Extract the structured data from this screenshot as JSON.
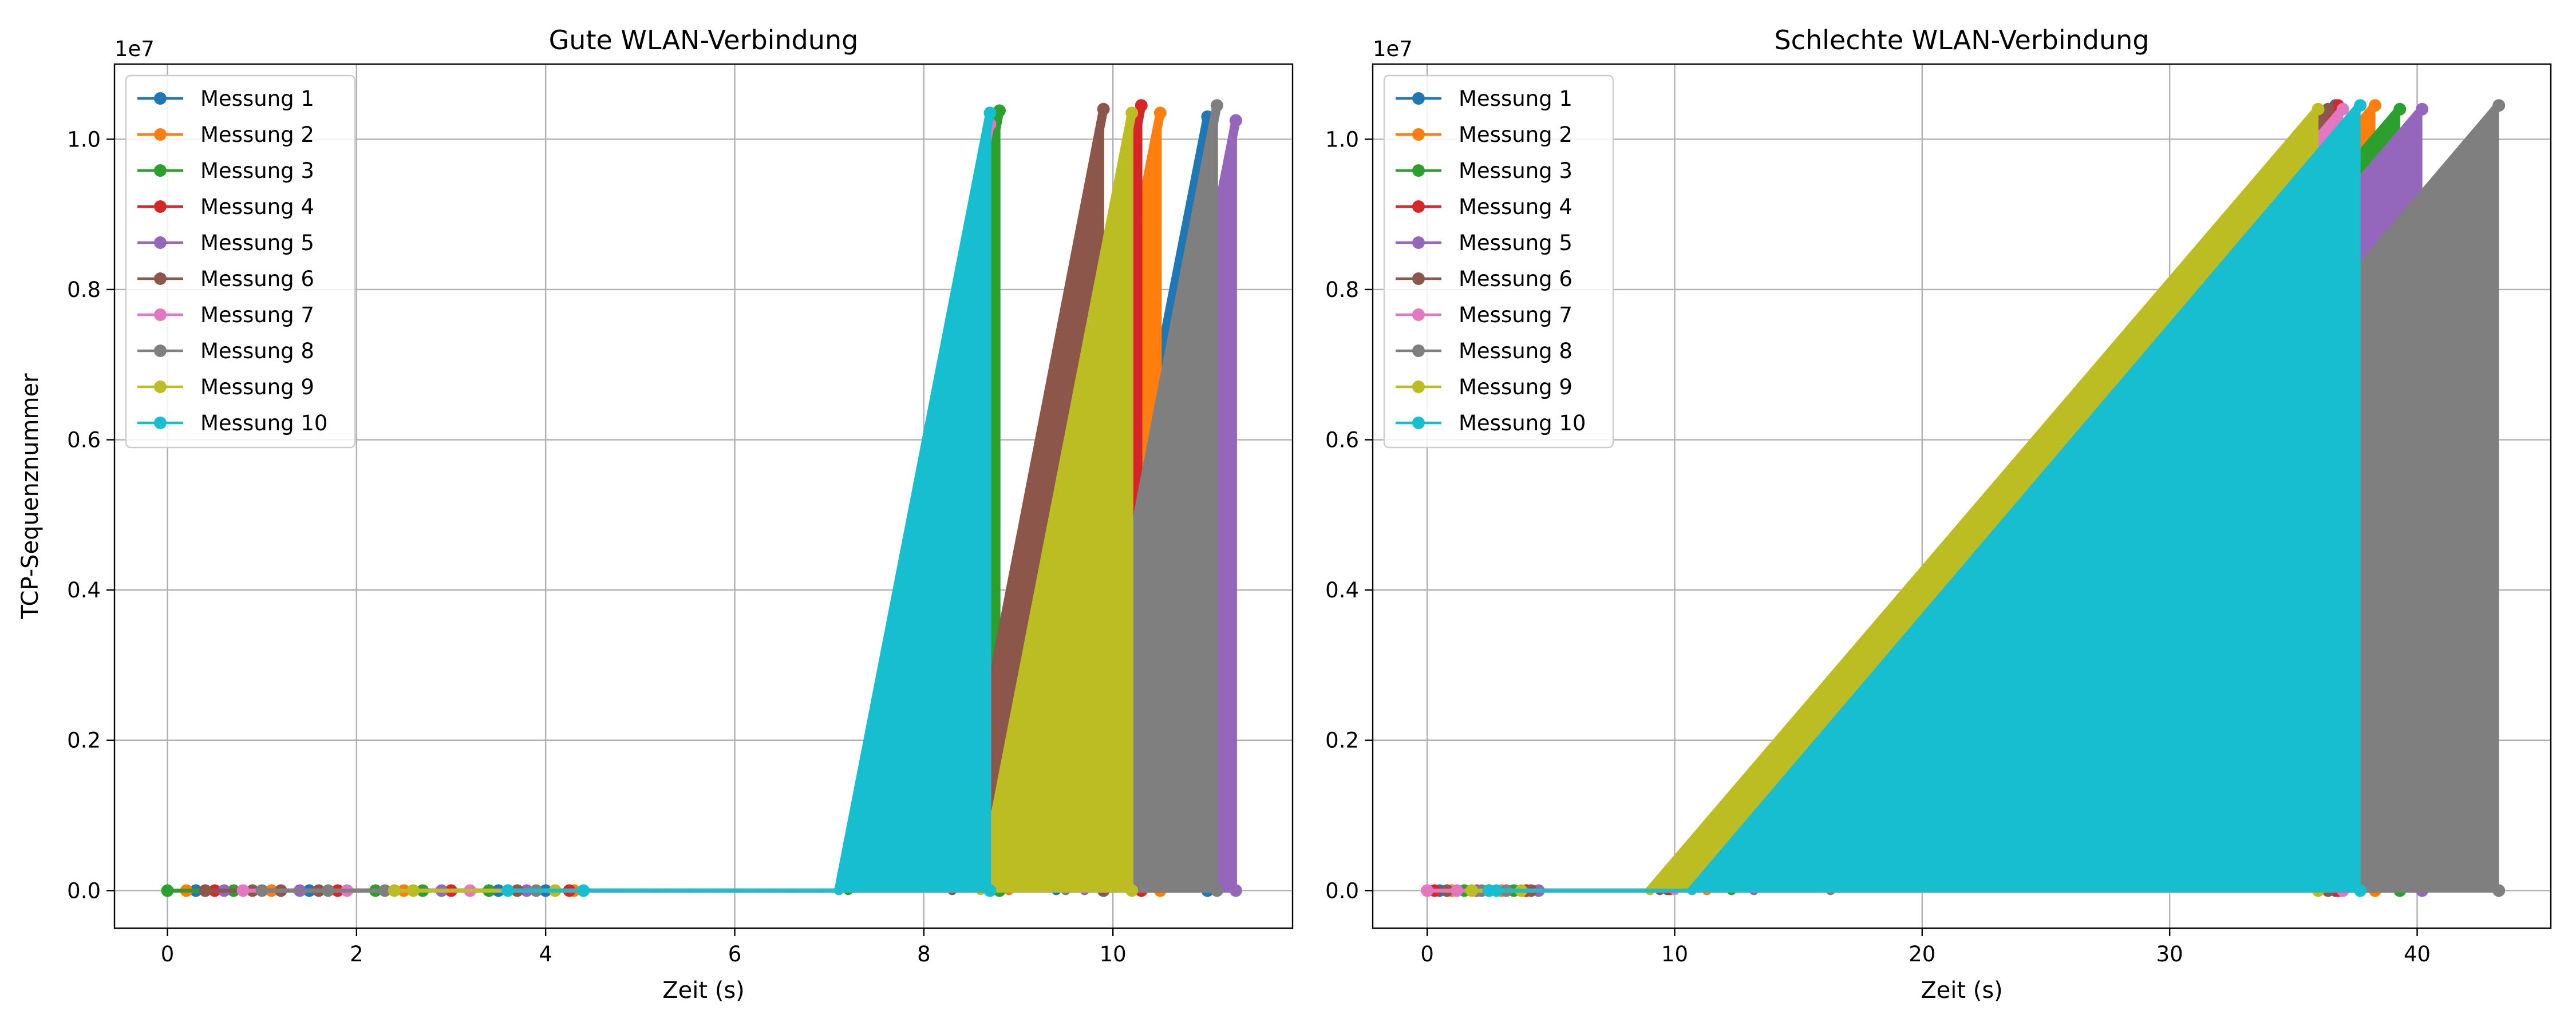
{
  "chart_data": [
    {
      "type": "line",
      "title": "Gute WLAN-Verbindung",
      "xlabel": "Zeit (s)",
      "ylabel": "TCP-Sequenznummer",
      "y_offset_label": "1e7",
      "xlim": [
        -0.56,
        11.9
      ],
      "ylim": [
        -500000,
        11000000
      ],
      "xticks": [
        0,
        2,
        4,
        6,
        8,
        10
      ],
      "xtick_labels": [
        "0",
        "2",
        "4",
        "6",
        "8",
        "10"
      ],
      "yticks": [
        0,
        2000000,
        4000000,
        6000000,
        8000000,
        10000000
      ],
      "ytick_labels": [
        "0.0",
        "0.2",
        "0.4",
        "0.6",
        "0.8",
        "1.0"
      ],
      "grid": true,
      "legend_position": "top-left",
      "series": [
        {
          "name": "Messung 1",
          "color": "#1f77b4",
          "idle_x": [
            0.3,
            1.5,
            3.5,
            4.0
          ],
          "ramp_start": 5.0,
          "ramp_end": 11.0,
          "y_max": 10300000
        },
        {
          "name": "Messung 2",
          "color": "#ff7f0e",
          "idle_x": [
            0.2,
            0.4,
            1.1,
            2.5,
            4.3
          ],
          "ramp_start": 5.0,
          "ramp_end": 10.5,
          "y_max": 10350000
        },
        {
          "name": "Messung 3",
          "color": "#2ca02c",
          "idle_x": [
            0.0,
            0.7,
            2.2,
            2.7,
            3.4
          ],
          "ramp_start": 4.7,
          "ramp_end": 8.8,
          "y_max": 10380000
        },
        {
          "name": "Messung 4",
          "color": "#d62728",
          "idle_x": [
            0.5,
            1.8,
            3.0,
            4.25
          ],
          "ramp_start": 4.9,
          "ramp_end": 10.3,
          "y_max": 10450000
        },
        {
          "name": "Messung 5",
          "color": "#9467bd",
          "idle_x": [
            0.6,
            1.4,
            2.9,
            3.8
          ],
          "ramp_start": 5.0,
          "ramp_end": 11.3,
          "y_max": 10250000
        },
        {
          "name": "Messung 6",
          "color": "#8c564b",
          "idle_x": [
            0.4,
            0.9,
            1.2,
            1.6,
            3.7
          ],
          "ramp_start": 4.9,
          "ramp_end": 9.9,
          "y_max": 10400000
        },
        {
          "name": "Messung 7",
          "color": "#e377c2",
          "idle_x": [
            0.8,
            1.9,
            3.2
          ],
          "ramp_start": 4.6,
          "ramp_end": 8.7,
          "y_max": 10200000
        },
        {
          "name": "Messung 8",
          "color": "#7f7f7f",
          "idle_x": [
            1.0,
            1.7,
            2.3,
            3.9
          ],
          "ramp_start": 5.0,
          "ramp_end": 11.1,
          "y_max": 10450000
        },
        {
          "name": "Messung 9",
          "color": "#bcbd22",
          "idle_x": [
            2.4,
            2.6,
            4.1
          ],
          "ramp_start": 4.8,
          "ramp_end": 10.2,
          "y_max": 10350000
        },
        {
          "name": "Messung 10",
          "color": "#17becf",
          "idle_x": [
            3.6,
            4.4
          ],
          "ramp_start": 4.6,
          "ramp_end": 8.7,
          "y_max": 10350000
        }
      ]
    },
    {
      "type": "line",
      "title": "Schlechte WLAN-Verbindung",
      "xlabel": "Zeit (s)",
      "ylabel": "",
      "y_offset_label": "1e7",
      "xlim": [
        -2.2,
        45.4
      ],
      "ylim": [
        -500000,
        11000000
      ],
      "xticks": [
        0,
        10,
        20,
        30,
        40
      ],
      "xtick_labels": [
        "0",
        "10",
        "20",
        "30",
        "40"
      ],
      "yticks": [
        0,
        2000000,
        4000000,
        6000000,
        8000000,
        10000000
      ],
      "ytick_labels": [
        "0.0",
        "0.2",
        "0.4",
        "0.6",
        "0.8",
        "1.0"
      ],
      "grid": true,
      "legend_position": "top-left",
      "series": [
        {
          "name": "Messung 1",
          "color": "#1f77b4",
          "idle_x": [
            0.5,
            2.5
          ],
          "ramp_start": 5.5,
          "ramp_end": 36.7,
          "y_max": 10450000
        },
        {
          "name": "Messung 2",
          "color": "#ff7f0e",
          "idle_x": [
            1.0,
            3.0
          ],
          "ramp_start": 5.5,
          "ramp_end": 38.3,
          "y_max": 10450000
        },
        {
          "name": "Messung 3",
          "color": "#2ca02c",
          "idle_x": [
            1.5,
            3.5
          ],
          "ramp_start": 5.5,
          "ramp_end": 39.3,
          "y_max": 10400000
        },
        {
          "name": "Messung 4",
          "color": "#d62728",
          "idle_x": [
            0.3,
            4.0
          ],
          "ramp_start": 5.5,
          "ramp_end": 36.8,
          "y_max": 10450000
        },
        {
          "name": "Messung 5",
          "color": "#9467bd",
          "idle_x": [
            2.0,
            4.5
          ],
          "ramp_start": 5.5,
          "ramp_end": 40.2,
          "y_max": 10400000
        },
        {
          "name": "Messung 6",
          "color": "#8c564b",
          "idle_x": [
            0.8,
            4.2
          ],
          "ramp_start": 5.5,
          "ramp_end": 36.4,
          "y_max": 10400000
        },
        {
          "name": "Messung 7",
          "color": "#e377c2",
          "idle_x": [
            0.0,
            1.2
          ],
          "ramp_start": 5.5,
          "ramp_end": 37.0,
          "y_max": 10400000
        },
        {
          "name": "Messung 8",
          "color": "#7f7f7f",
          "idle_x": [
            2.2,
            3.2
          ],
          "ramp_start": 5.5,
          "ramp_end": 43.3,
          "y_max": 10450000
        },
        {
          "name": "Messung 9",
          "color": "#bcbd22",
          "idle_x": [
            1.8,
            3.8
          ],
          "ramp_start": 5.5,
          "ramp_end": 36.0,
          "y_max": 10400000
        },
        {
          "name": "Messung 10",
          "color": "#17becf",
          "idle_x": [
            2.5,
            2.8
          ],
          "ramp_start": 5.5,
          "ramp_end": 37.7,
          "y_max": 10450000
        }
      ]
    }
  ]
}
